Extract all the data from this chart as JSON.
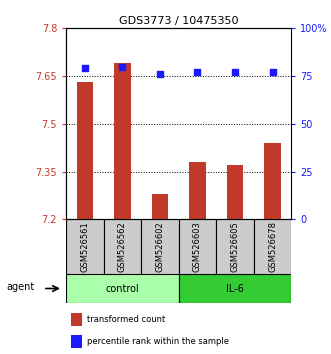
{
  "title": "GDS3773 / 10475350",
  "categories": [
    "GSM526561",
    "GSM526562",
    "GSM526602",
    "GSM526603",
    "GSM526605",
    "GSM526678"
  ],
  "bar_values": [
    7.63,
    7.69,
    7.28,
    7.38,
    7.37,
    7.44
  ],
  "percentile_values": [
    79,
    80,
    76,
    77,
    77,
    77
  ],
  "ylim_left": [
    7.2,
    7.8
  ],
  "ylim_right": [
    0,
    100
  ],
  "yticks_left": [
    7.2,
    7.35,
    7.5,
    7.65,
    7.8
  ],
  "ytick_labels_left": [
    "7.2",
    "7.35",
    "7.5",
    "7.65",
    "7.8"
  ],
  "yticks_right": [
    0,
    25,
    50,
    75,
    100
  ],
  "ytick_labels_right": [
    "0",
    "25",
    "50",
    "75",
    "100%"
  ],
  "grid_values": [
    7.35,
    7.5,
    7.65
  ],
  "bar_color": "#c0392b",
  "dot_color": "#1a1aff",
  "bar_bottom": 7.2,
  "control_color": "#aaffaa",
  "il6_color": "#33cc33",
  "sample_bg_color": "#cccccc",
  "legend_bar_label": "transformed count",
  "legend_dot_label": "percentile rank within the sample",
  "agent_label": "agent",
  "control_label": "control",
  "il6_label": "IL-6",
  "title_fontsize": 8,
  "tick_fontsize": 7,
  "label_fontsize": 6,
  "group_fontsize": 7,
  "legend_fontsize": 6
}
